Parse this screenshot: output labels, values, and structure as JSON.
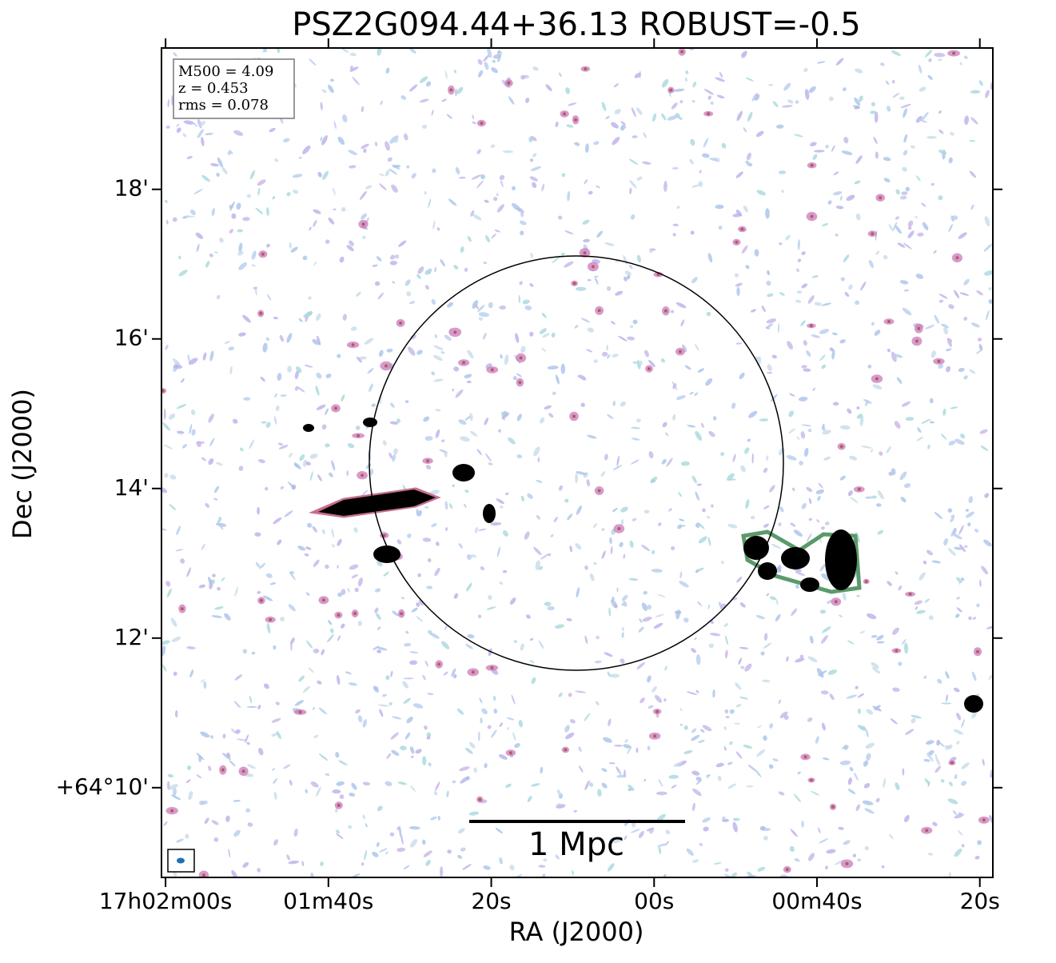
{
  "chart_data": {
    "type": "image",
    "title": "PSZ2G094.44+36.13 ROBUST=-0.5",
    "xlabel": "RA (J2000)",
    "ylabel": "Dec (J2000)",
    "xlim": [
      61320.5,
      61218.4
    ],
    "xticks": [
      {
        "value": 61320,
        "label": "17h02m00s"
      },
      {
        "value": 61300,
        "label": "01m40s"
      },
      {
        "value": 61280,
        "label": "20s"
      },
      {
        "value": 61260,
        "label": "00s"
      },
      {
        "value": 61240,
        "label": "00m40s"
      },
      {
        "value": 61220,
        "label": "20s"
      }
    ],
    "ylim": [
      8.8,
      19.89
    ],
    "yticks": [
      {
        "value": 10,
        "label": "+64°10'"
      },
      {
        "value": 12,
        "label": "12'"
      },
      {
        "value": 14,
        "label": "14'"
      },
      {
        "value": 16,
        "label": "16'"
      },
      {
        "value": 18,
        "label": "18'"
      }
    ],
    "annotations": [
      "M500 = 4.09",
      "z = 0.453",
      "rms = 0.078"
    ],
    "scalebar_label": "1 Mpc"
  }
}
